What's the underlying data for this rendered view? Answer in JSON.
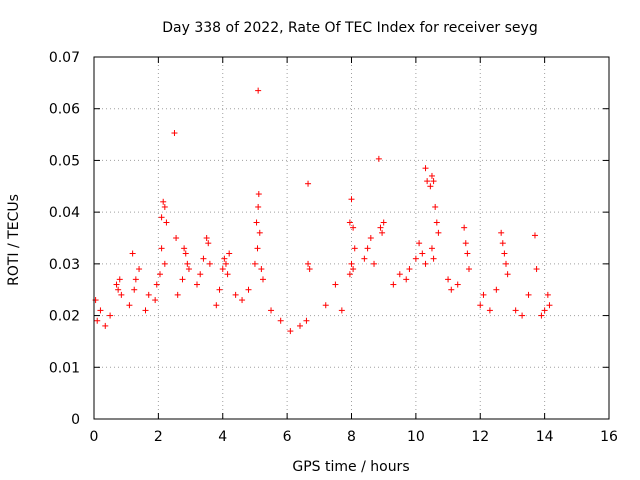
{
  "chart_data": {
    "type": "scatter",
    "title": "Day 338 of 2022, Rate Of TEC Index for receiver seyg",
    "xlabel": "GPS time / hours",
    "ylabel": "ROTI / TECUs",
    "xlim": [
      0,
      16
    ],
    "ylim": [
      0,
      0.07
    ],
    "x_ticks": [
      "0",
      "2",
      "4",
      "6",
      "8",
      "10",
      "12",
      "14",
      "16"
    ],
    "y_ticks": [
      "0",
      "0.01",
      "0.02",
      "0.03",
      "0.04",
      "0.05",
      "0.06",
      "0.07"
    ],
    "grid": true,
    "marker": "+",
    "color": "#ff0000",
    "series": [
      {
        "values": [
          [
            0.05,
            0.023
          ],
          [
            0.1,
            0.019
          ],
          [
            0.2,
            0.021
          ],
          [
            0.35,
            0.018
          ],
          [
            0.5,
            0.02
          ],
          [
            0.7,
            0.026
          ],
          [
            0.75,
            0.025
          ],
          [
            0.8,
            0.027
          ],
          [
            0.85,
            0.024
          ],
          [
            1.1,
            0.022
          ],
          [
            1.2,
            0.032
          ],
          [
            1.25,
            0.025
          ],
          [
            1.3,
            0.027
          ],
          [
            1.4,
            0.029
          ],
          [
            1.6,
            0.021
          ],
          [
            1.7,
            0.024
          ],
          [
            1.9,
            0.023
          ],
          [
            1.95,
            0.026
          ],
          [
            2.1,
            0.039
          ],
          [
            2.15,
            0.042
          ],
          [
            2.2,
            0.041
          ],
          [
            2.25,
            0.038
          ],
          [
            2.1,
            0.033
          ],
          [
            2.2,
            0.03
          ],
          [
            2.05,
            0.028
          ],
          [
            2.5,
            0.0553
          ],
          [
            2.55,
            0.035
          ],
          [
            2.6,
            0.024
          ],
          [
            2.8,
            0.033
          ],
          [
            2.85,
            0.032
          ],
          [
            2.9,
            0.03
          ],
          [
            2.95,
            0.029
          ],
          [
            2.75,
            0.027
          ],
          [
            3.2,
            0.026
          ],
          [
            3.3,
            0.028
          ],
          [
            3.4,
            0.031
          ],
          [
            3.5,
            0.035
          ],
          [
            3.55,
            0.034
          ],
          [
            3.6,
            0.03
          ],
          [
            3.8,
            0.022
          ],
          [
            3.9,
            0.025
          ],
          [
            4.0,
            0.029
          ],
          [
            4.05,
            0.031
          ],
          [
            4.1,
            0.03
          ],
          [
            4.2,
            0.032
          ],
          [
            4.15,
            0.028
          ],
          [
            4.4,
            0.024
          ],
          [
            4.6,
            0.023
          ],
          [
            4.8,
            0.025
          ],
          [
            5.0,
            0.03
          ],
          [
            5.05,
            0.038
          ],
          [
            5.1,
            0.041
          ],
          [
            5.12,
            0.0435
          ],
          [
            5.15,
            0.036
          ],
          [
            5.08,
            0.033
          ],
          [
            5.1,
            0.0635
          ],
          [
            5.2,
            0.029
          ],
          [
            5.25,
            0.027
          ],
          [
            5.5,
            0.021
          ],
          [
            5.8,
            0.019
          ],
          [
            6.1,
            0.017
          ],
          [
            6.4,
            0.018
          ],
          [
            6.65,
            0.0455
          ],
          [
            6.65,
            0.03
          ],
          [
            6.7,
            0.029
          ],
          [
            6.6,
            0.019
          ],
          [
            7.2,
            0.022
          ],
          [
            7.5,
            0.026
          ],
          [
            7.7,
            0.021
          ],
          [
            7.95,
            0.038
          ],
          [
            8.0,
            0.0425
          ],
          [
            8.05,
            0.037
          ],
          [
            8.1,
            0.033
          ],
          [
            8.0,
            0.03
          ],
          [
            8.05,
            0.029
          ],
          [
            7.95,
            0.028
          ],
          [
            8.4,
            0.031
          ],
          [
            8.5,
            0.033
          ],
          [
            8.6,
            0.035
          ],
          [
            8.7,
            0.03
          ],
          [
            8.85,
            0.0503
          ],
          [
            8.9,
            0.037
          ],
          [
            8.95,
            0.036
          ],
          [
            9.0,
            0.038
          ],
          [
            9.3,
            0.026
          ],
          [
            9.5,
            0.028
          ],
          [
            9.7,
            0.027
          ],
          [
            9.8,
            0.029
          ],
          [
            10.0,
            0.031
          ],
          [
            10.1,
            0.034
          ],
          [
            10.2,
            0.032
          ],
          [
            10.3,
            0.03
          ],
          [
            10.3,
            0.0485
          ],
          [
            10.35,
            0.046
          ],
          [
            10.5,
            0.047
          ],
          [
            10.55,
            0.046
          ],
          [
            10.45,
            0.045
          ],
          [
            10.6,
            0.041
          ],
          [
            10.65,
            0.038
          ],
          [
            10.7,
            0.036
          ],
          [
            10.5,
            0.033
          ],
          [
            10.55,
            0.031
          ],
          [
            11.0,
            0.027
          ],
          [
            11.1,
            0.025
          ],
          [
            11.3,
            0.026
          ],
          [
            11.5,
            0.037
          ],
          [
            11.55,
            0.034
          ],
          [
            11.6,
            0.032
          ],
          [
            11.65,
            0.029
          ],
          [
            12.0,
            0.022
          ],
          [
            12.1,
            0.024
          ],
          [
            12.3,
            0.021
          ],
          [
            12.5,
            0.025
          ],
          [
            12.65,
            0.036
          ],
          [
            12.7,
            0.034
          ],
          [
            12.75,
            0.032
          ],
          [
            12.8,
            0.03
          ],
          [
            12.85,
            0.028
          ],
          [
            13.1,
            0.021
          ],
          [
            13.3,
            0.02
          ],
          [
            13.5,
            0.024
          ],
          [
            13.7,
            0.0355
          ],
          [
            13.75,
            0.029
          ],
          [
            13.9,
            0.02
          ],
          [
            14.0,
            0.021
          ],
          [
            14.1,
            0.024
          ],
          [
            14.15,
            0.022
          ]
        ]
      }
    ]
  }
}
